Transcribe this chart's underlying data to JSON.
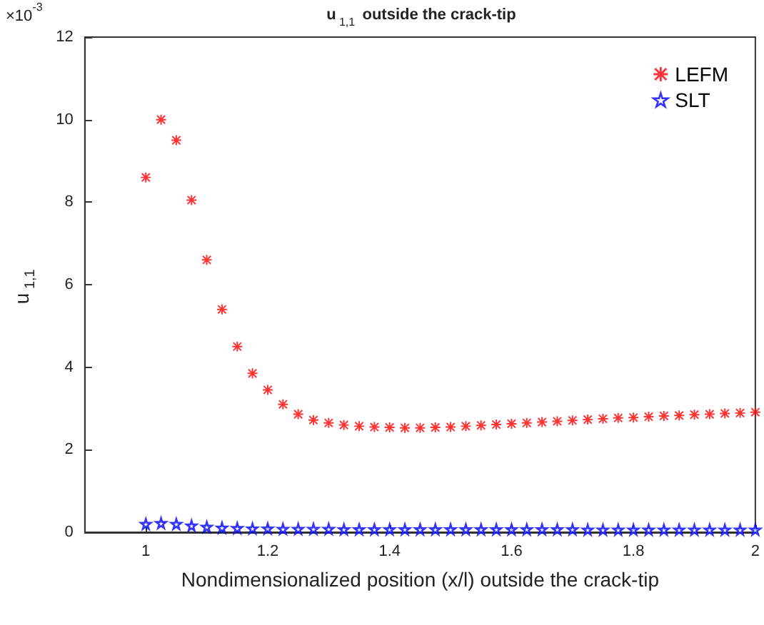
{
  "chart_data": {
    "type": "scatter",
    "title": "u$_{1,1}$ outside the crack-tip",
    "xlabel": "Nondimensionalized position (x/l) outside the crack-tip",
    "ylabel": "u$_{1,1}$",
    "annotations": [
      "×10$^{-3}$"
    ],
    "x": [
      1,
      1.025,
      1.05,
      1.075,
      1.1,
      1.125,
      1.15,
      1.175,
      1.2,
      1.225,
      1.25,
      1.275,
      1.3,
      1.325,
      1.35,
      1.375,
      1.4,
      1.425,
      1.45,
      1.475,
      1.5,
      1.525,
      1.55,
      1.575,
      1.6,
      1.625,
      1.65,
      1.675,
      1.7,
      1.725,
      1.75,
      1.775,
      1.8,
      1.825,
      1.85,
      1.875,
      1.9,
      1.925,
      1.95,
      1.975,
      2
    ],
    "series": [
      {
        "name": "LEFM",
        "color": "#ff0000",
        "marker": "cross",
        "values": [
          8.6,
          10.0,
          9.5,
          8.05,
          6.6,
          5.4,
          4.5,
          3.85,
          3.45,
          3.1,
          2.86,
          2.72,
          2.65,
          2.6,
          2.57,
          2.55,
          2.54,
          2.53,
          2.53,
          2.54,
          2.55,
          2.57,
          2.59,
          2.61,
          2.63,
          2.65,
          2.67,
          2.69,
          2.71,
          2.73,
          2.75,
          2.77,
          2.78,
          2.8,
          2.82,
          2.83,
          2.85,
          2.86,
          2.88,
          2.89,
          2.91
        ]
      },
      {
        "name": "SLT",
        "color": "#0000ff",
        "marker": "star",
        "values": [
          0.2,
          0.22,
          0.2,
          0.16,
          0.13,
          0.11,
          0.1,
          0.09,
          0.09,
          0.08,
          0.08,
          0.08,
          0.08,
          0.07,
          0.07,
          0.07,
          0.07,
          0.07,
          0.07,
          0.07,
          0.07,
          0.07,
          0.07,
          0.07,
          0.07,
          0.07,
          0.07,
          0.07,
          0.07,
          0.06,
          0.06,
          0.06,
          0.06,
          0.06,
          0.06,
          0.06,
          0.06,
          0.06,
          0.06,
          0.06,
          0.06
        ]
      }
    ],
    "xlim": [
      0.9,
      2
    ],
    "xticks": [
      1,
      1.2,
      1.4,
      1.6,
      1.8,
      2
    ],
    "ylim": [
      0,
      12
    ],
    "yticks": [
      0,
      2,
      4,
      6,
      8,
      10,
      12
    ],
    "grid": false,
    "legend": "top right"
  }
}
